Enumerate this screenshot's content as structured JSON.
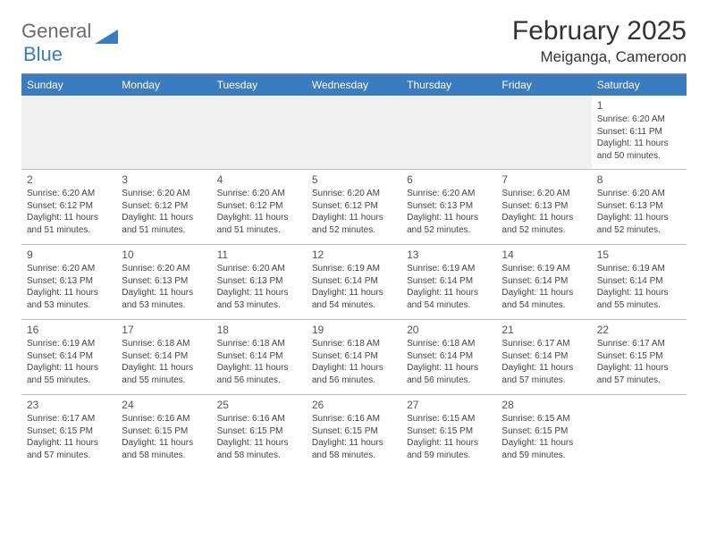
{
  "brand": {
    "part1": "General",
    "part2": "Blue"
  },
  "title": "February 2025",
  "location": "Meiganga, Cameroon",
  "colors": {
    "header_bg": "#3b7bbf",
    "header_text": "#ffffff",
    "logo_gray": "#6a6a6a",
    "logo_blue": "#3b7bbf",
    "divider": "#bfbfbf",
    "empty_bg": "#f0f0f0"
  },
  "weekdays": [
    "Sunday",
    "Monday",
    "Tuesday",
    "Wednesday",
    "Thursday",
    "Friday",
    "Saturday"
  ],
  "weeks": [
    [
      {
        "n": "",
        "sr": "",
        "ss": "",
        "dl": ""
      },
      {
        "n": "",
        "sr": "",
        "ss": "",
        "dl": ""
      },
      {
        "n": "",
        "sr": "",
        "ss": "",
        "dl": ""
      },
      {
        "n": "",
        "sr": "",
        "ss": "",
        "dl": ""
      },
      {
        "n": "",
        "sr": "",
        "ss": "",
        "dl": ""
      },
      {
        "n": "",
        "sr": "",
        "ss": "",
        "dl": ""
      },
      {
        "n": "1",
        "sr": "Sunrise: 6:20 AM",
        "ss": "Sunset: 6:11 PM",
        "dl": "Daylight: 11 hours and 50 minutes."
      }
    ],
    [
      {
        "n": "2",
        "sr": "Sunrise: 6:20 AM",
        "ss": "Sunset: 6:12 PM",
        "dl": "Daylight: 11 hours and 51 minutes."
      },
      {
        "n": "3",
        "sr": "Sunrise: 6:20 AM",
        "ss": "Sunset: 6:12 PM",
        "dl": "Daylight: 11 hours and 51 minutes."
      },
      {
        "n": "4",
        "sr": "Sunrise: 6:20 AM",
        "ss": "Sunset: 6:12 PM",
        "dl": "Daylight: 11 hours and 51 minutes."
      },
      {
        "n": "5",
        "sr": "Sunrise: 6:20 AM",
        "ss": "Sunset: 6:12 PM",
        "dl": "Daylight: 11 hours and 52 minutes."
      },
      {
        "n": "6",
        "sr": "Sunrise: 6:20 AM",
        "ss": "Sunset: 6:13 PM",
        "dl": "Daylight: 11 hours and 52 minutes."
      },
      {
        "n": "7",
        "sr": "Sunrise: 6:20 AM",
        "ss": "Sunset: 6:13 PM",
        "dl": "Daylight: 11 hours and 52 minutes."
      },
      {
        "n": "8",
        "sr": "Sunrise: 6:20 AM",
        "ss": "Sunset: 6:13 PM",
        "dl": "Daylight: 11 hours and 52 minutes."
      }
    ],
    [
      {
        "n": "9",
        "sr": "Sunrise: 6:20 AM",
        "ss": "Sunset: 6:13 PM",
        "dl": "Daylight: 11 hours and 53 minutes."
      },
      {
        "n": "10",
        "sr": "Sunrise: 6:20 AM",
        "ss": "Sunset: 6:13 PM",
        "dl": "Daylight: 11 hours and 53 minutes."
      },
      {
        "n": "11",
        "sr": "Sunrise: 6:20 AM",
        "ss": "Sunset: 6:13 PM",
        "dl": "Daylight: 11 hours and 53 minutes."
      },
      {
        "n": "12",
        "sr": "Sunrise: 6:19 AM",
        "ss": "Sunset: 6:14 PM",
        "dl": "Daylight: 11 hours and 54 minutes."
      },
      {
        "n": "13",
        "sr": "Sunrise: 6:19 AM",
        "ss": "Sunset: 6:14 PM",
        "dl": "Daylight: 11 hours and 54 minutes."
      },
      {
        "n": "14",
        "sr": "Sunrise: 6:19 AM",
        "ss": "Sunset: 6:14 PM",
        "dl": "Daylight: 11 hours and 54 minutes."
      },
      {
        "n": "15",
        "sr": "Sunrise: 6:19 AM",
        "ss": "Sunset: 6:14 PM",
        "dl": "Daylight: 11 hours and 55 minutes."
      }
    ],
    [
      {
        "n": "16",
        "sr": "Sunrise: 6:19 AM",
        "ss": "Sunset: 6:14 PM",
        "dl": "Daylight: 11 hours and 55 minutes."
      },
      {
        "n": "17",
        "sr": "Sunrise: 6:18 AM",
        "ss": "Sunset: 6:14 PM",
        "dl": "Daylight: 11 hours and 55 minutes."
      },
      {
        "n": "18",
        "sr": "Sunrise: 6:18 AM",
        "ss": "Sunset: 6:14 PM",
        "dl": "Daylight: 11 hours and 56 minutes."
      },
      {
        "n": "19",
        "sr": "Sunrise: 6:18 AM",
        "ss": "Sunset: 6:14 PM",
        "dl": "Daylight: 11 hours and 56 minutes."
      },
      {
        "n": "20",
        "sr": "Sunrise: 6:18 AM",
        "ss": "Sunset: 6:14 PM",
        "dl": "Daylight: 11 hours and 56 minutes."
      },
      {
        "n": "21",
        "sr": "Sunrise: 6:17 AM",
        "ss": "Sunset: 6:14 PM",
        "dl": "Daylight: 11 hours and 57 minutes."
      },
      {
        "n": "22",
        "sr": "Sunrise: 6:17 AM",
        "ss": "Sunset: 6:15 PM",
        "dl": "Daylight: 11 hours and 57 minutes."
      }
    ],
    [
      {
        "n": "23",
        "sr": "Sunrise: 6:17 AM",
        "ss": "Sunset: 6:15 PM",
        "dl": "Daylight: 11 hours and 57 minutes."
      },
      {
        "n": "24",
        "sr": "Sunrise: 6:16 AM",
        "ss": "Sunset: 6:15 PM",
        "dl": "Daylight: 11 hours and 58 minutes."
      },
      {
        "n": "25",
        "sr": "Sunrise: 6:16 AM",
        "ss": "Sunset: 6:15 PM",
        "dl": "Daylight: 11 hours and 58 minutes."
      },
      {
        "n": "26",
        "sr": "Sunrise: 6:16 AM",
        "ss": "Sunset: 6:15 PM",
        "dl": "Daylight: 11 hours and 58 minutes."
      },
      {
        "n": "27",
        "sr": "Sunrise: 6:15 AM",
        "ss": "Sunset: 6:15 PM",
        "dl": "Daylight: 11 hours and 59 minutes."
      },
      {
        "n": "28",
        "sr": "Sunrise: 6:15 AM",
        "ss": "Sunset: 6:15 PM",
        "dl": "Daylight: 11 hours and 59 minutes."
      },
      {
        "n": "",
        "sr": "",
        "ss": "",
        "dl": ""
      }
    ]
  ]
}
